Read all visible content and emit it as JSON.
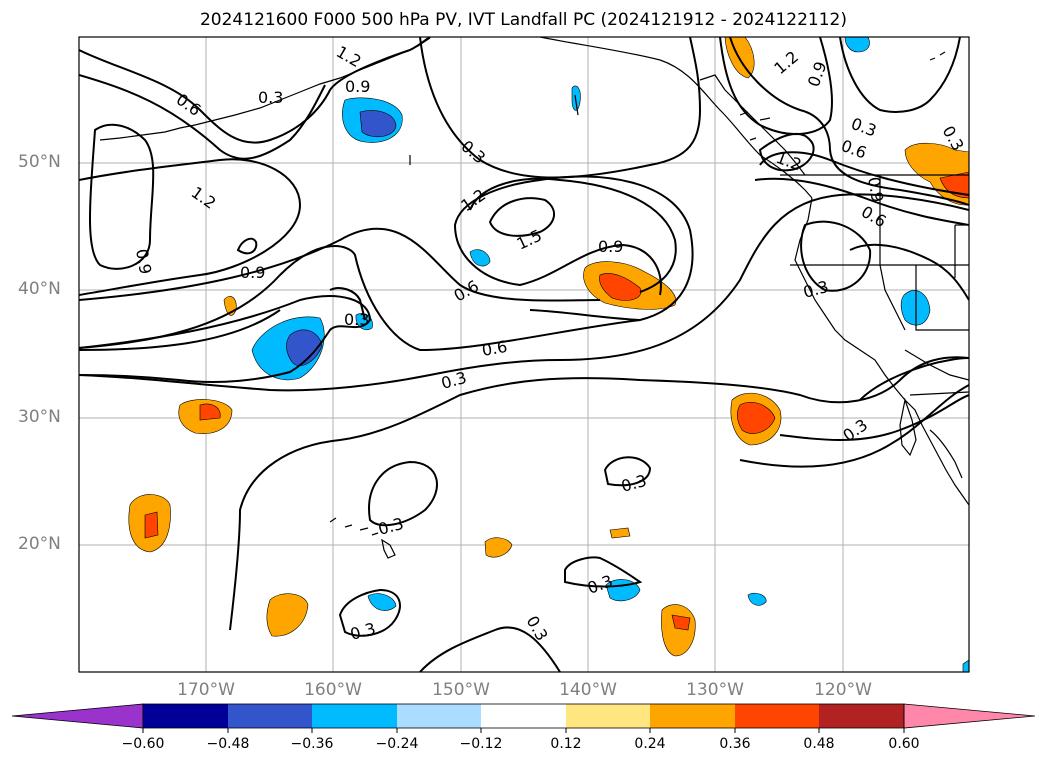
{
  "title": "2024121600 F000 500 hPa PV, IVT Landfall PC (2024121912 - 2024122112)",
  "latitude_labels": [
    {
      "text": "50°N",
      "lat": 50
    },
    {
      "text": "40°N",
      "lat": 40
    },
    {
      "text": "30°N",
      "lat": 30
    },
    {
      "text": "20°N",
      "lat": 20
    }
  ],
  "longitude_labels": [
    {
      "text": "170°W",
      "lon": -170
    },
    {
      "text": "160°W",
      "lon": -160
    },
    {
      "text": "150°W",
      "lon": -150
    },
    {
      "text": "140°W",
      "lon": -140
    },
    {
      "text": "130°W",
      "lon": -130
    },
    {
      "text": "120°W",
      "lon": -120
    }
  ],
  "colorbar": {
    "tick_labels": [
      "−0.60",
      "−0.48",
      "−0.36",
      "−0.24",
      "−0.12",
      "0.12",
      "0.24",
      "0.36",
      "0.48",
      "0.60"
    ],
    "colors": [
      "#9933cc",
      "#000099",
      "#3355cc",
      "#00bbff",
      "#aaddff",
      "#ffffff",
      "#ffe680",
      "#ffa500",
      "#ff4500",
      "#b22222",
      "#ff88aa"
    ]
  },
  "contour_labels": [
    "0.3",
    "0.6",
    "0.9",
    "1.2",
    "1.5"
  ]
}
